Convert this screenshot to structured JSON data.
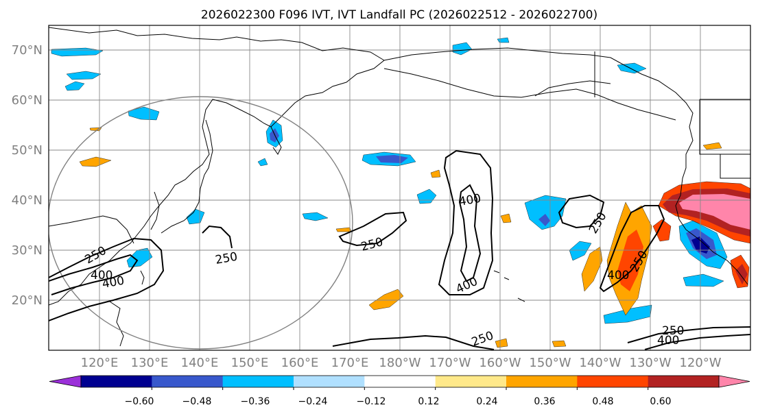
{
  "title": "2026022300 F096 IVT, IVT Landfall PC (2026022512 - 2026022700)",
  "map": {
    "lat_labels": [
      "70°N",
      "60°N",
      "50°N",
      "40°N",
      "30°N",
      "20°N"
    ],
    "lon_labels": [
      "120°E",
      "130°E",
      "140°E",
      "150°E",
      "160°E",
      "170°E",
      "180°W",
      "170°W",
      "160°W",
      "150°W",
      "140°W",
      "130°W",
      "120°W"
    ],
    "contour_labels": [
      {
        "text": "250"
      },
      {
        "text": "250"
      },
      {
        "text": "250"
      },
      {
        "text": "250"
      },
      {
        "text": "250"
      },
      {
        "text": "250"
      },
      {
        "text": "250"
      },
      {
        "text": "400"
      },
      {
        "text": "400"
      },
      {
        "text": "400"
      },
      {
        "text": "400"
      },
      {
        "text": "400"
      },
      {
        "text": "400"
      }
    ],
    "colors": {
      "land_line": "#000000",
      "grid": "#888888",
      "circle": "#808080",
      "axis_label": "#808080"
    }
  },
  "colorbar": {
    "ticks": [
      "−0.60",
      "−0.48",
      "−0.36",
      "−0.24",
      "−0.12",
      "0.12",
      "0.24",
      "0.36",
      "0.48",
      "0.60"
    ],
    "colors": [
      "#9b30d9",
      "#000090",
      "#3858cc",
      "#00bfff",
      "#b0e0ff",
      "#ffffff",
      "#ffe98a",
      "#ffa500",
      "#ff4500",
      "#b22222",
      "#ff85aa"
    ]
  }
}
